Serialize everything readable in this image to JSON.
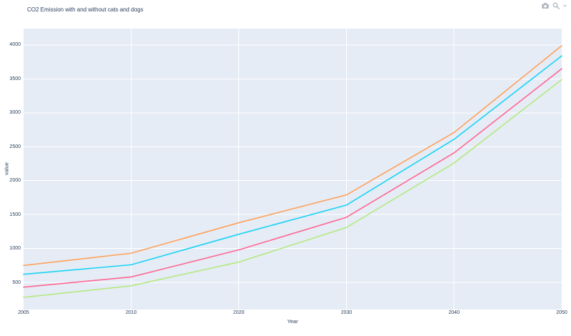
{
  "chart_data": {
    "type": "line",
    "title": "CO2 Emission with and without cats and dogs",
    "xlabel": "Year",
    "ylabel": "value",
    "x_axis_type": "category",
    "categories": [
      "2005",
      "2010",
      "2020",
      "2030",
      "2040",
      "2050"
    ],
    "yticks": [
      500,
      1000,
      1500,
      2000,
      2500,
      3000,
      3500,
      4000
    ],
    "ylim": [
      100,
      4242
    ],
    "grid": true,
    "legend_position": "none",
    "plot_bgcolor": "#E5ECF6",
    "paper_bgcolor": "#FFFFFF",
    "grid_color": "#FFFFFF",
    "text_color": "#2a3f5f",
    "line_width": 1.6,
    "series": [
      {
        "id": "line-orange",
        "color": "#FFA15A",
        "values": [
          750,
          930,
          1380,
          1790,
          2710,
          3990
        ]
      },
      {
        "id": "line-cyan",
        "color": "#19D3F3",
        "values": [
          620,
          760,
          1210,
          1640,
          2610,
          3840
        ]
      },
      {
        "id": "line-pink",
        "color": "#FF6692",
        "values": [
          430,
          580,
          980,
          1460,
          2410,
          3650
        ]
      },
      {
        "id": "line-green",
        "color": "#B6E880",
        "values": [
          280,
          450,
          800,
          1310,
          2260,
          3490
        ]
      }
    ]
  },
  "modebar": {
    "icons": [
      "camera",
      "zoom"
    ]
  }
}
